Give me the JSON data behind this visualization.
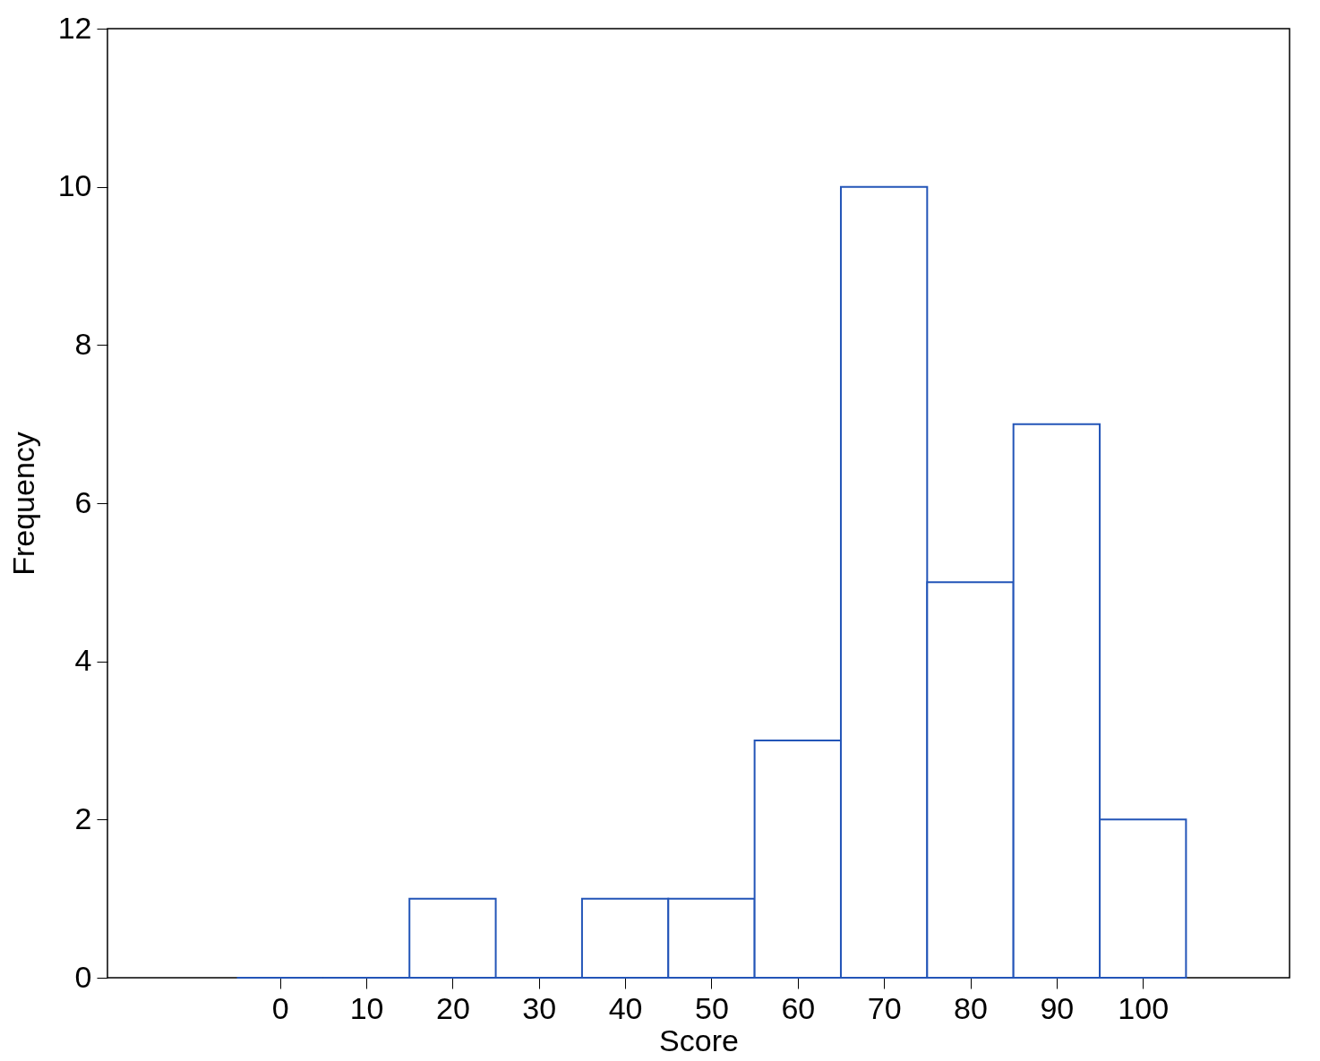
{
  "chart_data": {
    "type": "histogram",
    "xlabel": "Score",
    "ylabel": "Frequency",
    "bins": [
      -5,
      5,
      15,
      25,
      35,
      45,
      55,
      65,
      75,
      85,
      95,
      105
    ],
    "values": [
      0,
      0,
      1,
      0,
      1,
      1,
      3,
      10,
      5,
      7,
      2
    ],
    "color": "#2355b8",
    "xlim": [
      -20,
      117
    ],
    "xticks": [
      0,
      10,
      20,
      30,
      40,
      50,
      60,
      70,
      80,
      90,
      100
    ],
    "ylim": [
      0,
      12
    ],
    "yticks": [
      0,
      2,
      4,
      6,
      8,
      10,
      12
    ]
  }
}
